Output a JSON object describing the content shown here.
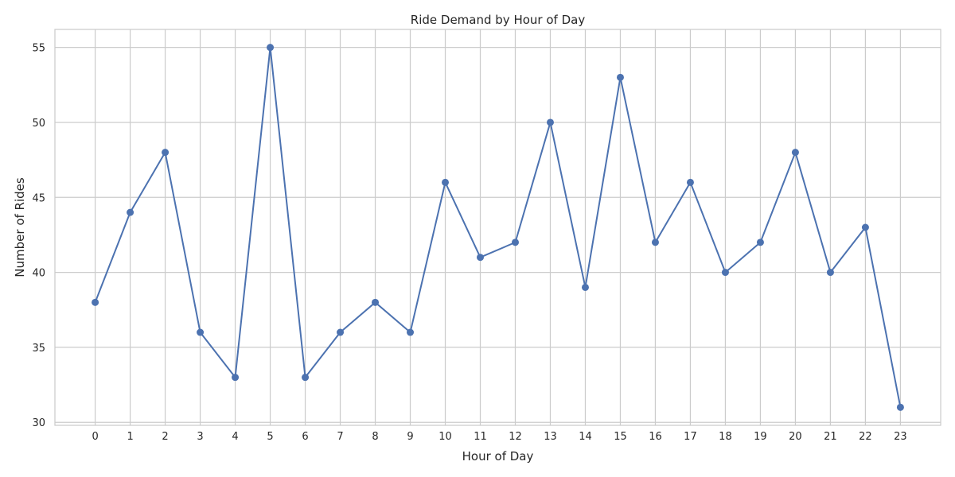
{
  "chart_data": {
    "type": "line",
    "title": "Ride Demand by Hour of Day",
    "xlabel": "Hour of Day",
    "ylabel": "Number of Rides",
    "x": [
      0,
      1,
      2,
      3,
      4,
      5,
      6,
      7,
      8,
      9,
      10,
      11,
      12,
      13,
      14,
      15,
      16,
      17,
      18,
      19,
      20,
      21,
      22,
      23
    ],
    "x_tick_labels": [
      "0",
      "1",
      "2",
      "3",
      "4",
      "5",
      "6",
      "7",
      "8",
      "9",
      "10",
      "11",
      "12",
      "13",
      "14",
      "15",
      "16",
      "17",
      "18",
      "19",
      "20",
      "21",
      "22",
      "23"
    ],
    "series": [
      {
        "values": [
          38,
          44,
          48,
          36,
          33,
          55,
          33,
          36,
          38,
          36,
          46,
          41,
          42,
          50,
          39,
          53,
          42,
          46,
          40,
          42,
          48,
          40,
          43,
          31
        ],
        "color": "#4c72b0",
        "marker": "circle"
      }
    ],
    "xlim": [
      -1.15,
      24.15
    ],
    "ylim": [
      29.8,
      56.2
    ],
    "y_ticks": [
      30,
      35,
      40,
      45,
      50,
      55
    ],
    "y_tick_labels": [
      "30",
      "35",
      "40",
      "45",
      "50",
      "55"
    ],
    "grid": true,
    "grid_color": "#cccccc",
    "legend": "none"
  }
}
